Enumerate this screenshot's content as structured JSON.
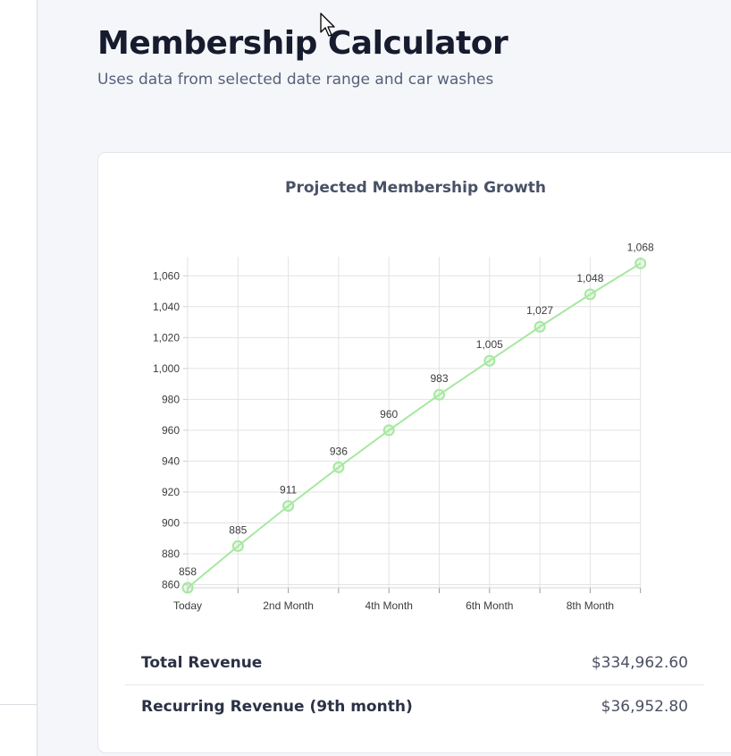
{
  "page": {
    "title": "Membership Calculator",
    "subtitle": "Uses data from selected date range and car washes"
  },
  "chart_data": {
    "type": "line",
    "title": "Projected Membership Growth",
    "xlabel": "",
    "ylabel": "",
    "x": [
      "Today",
      "",
      "2nd Month",
      "",
      "4th Month",
      "",
      "6th Month",
      "",
      "8th Month",
      ""
    ],
    "values": [
      858,
      885,
      911,
      936,
      960,
      983,
      1005,
      1027,
      1048,
      1068
    ],
    "data_labels": [
      "858",
      "885",
      "911",
      "936",
      "960",
      "983",
      "1,005",
      "1,027",
      "1,048",
      "1,068"
    ],
    "ylim": [
      860,
      1068
    ],
    "yticks": [
      860,
      880,
      900,
      920,
      940,
      960,
      980,
      1000,
      1020,
      1040,
      1060
    ],
    "ytick_labels": [
      "860",
      "880",
      "900",
      "920",
      "940",
      "960",
      "980",
      "1,000",
      "1,020",
      "1,040",
      "1,060"
    ],
    "grid": true,
    "legend": "none",
    "line_color": "#a6e8a0"
  },
  "summary": {
    "total_revenue_label": "Total Revenue",
    "total_revenue_value": "$334,962.60",
    "recurring_revenue_label": "Recurring Revenue (9th month)",
    "recurring_revenue_value": "$36,952.80"
  }
}
